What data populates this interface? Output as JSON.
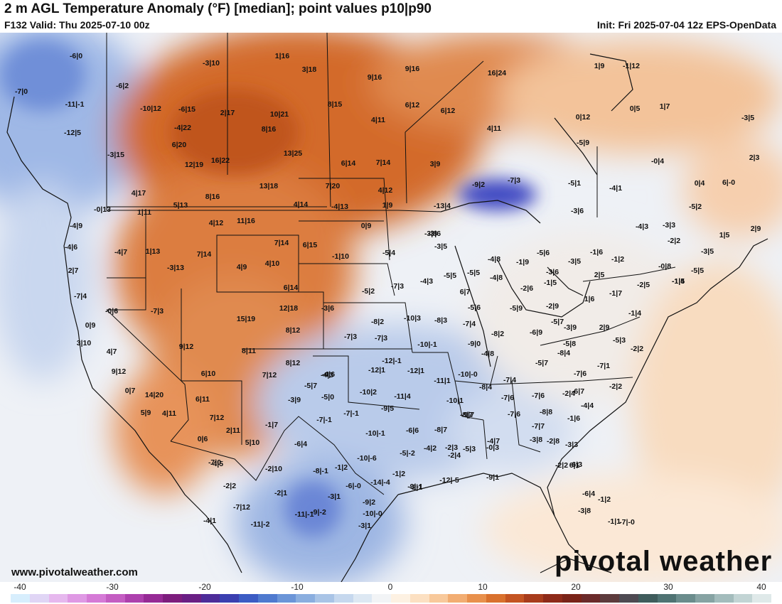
{
  "header": {
    "title": "2 m AGL Temperature Anomaly (°F) [median]; point values p10|p90",
    "valid": "F132 Valid: Thu 2025-07-10 00z",
    "init": "Init: Fri 2025-07-04 12z EPS-OpenData"
  },
  "footer": {
    "website": "www.pivotalweather.com",
    "logo_text": "pivotal weather"
  },
  "colorbar": {
    "ticks": [
      "-40",
      "-30",
      "-20",
      "-10",
      "0",
      "10",
      "20",
      "30",
      "40"
    ],
    "colors": [
      "#d7eefd",
      "#e0d5f5",
      "#e6b8ee",
      "#df99e4",
      "#d57ad6",
      "#c45dc2",
      "#ad40ad",
      "#962a95",
      "#7d1d7d",
      "#6a1f84",
      "#4d2c99",
      "#3b3fb0",
      "#3c5cc4",
      "#4f7acf",
      "#6b95d8",
      "#8aaedf",
      "#a9c4e6",
      "#c6d8ee",
      "#dde8f3",
      "#f2f4f6",
      "#fdf1e2",
      "#fce0c2",
      "#f8c99b",
      "#f2ad72",
      "#e8904c",
      "#d9712d",
      "#c45422",
      "#a83c1c",
      "#8e2a19",
      "#7a2318",
      "#6b2a2a",
      "#5d3b3d",
      "#4e4a52",
      "#3f5c5c",
      "#4f7373",
      "#6a8c8c",
      "#86a3a3",
      "#a3bcbc",
      "#c2d4d4",
      "#dfe9e9"
    ]
  },
  "point_values": [
    {
      "t": "-6|0"
    },
    {
      "t": "-7|0"
    },
    {
      "t": "-11|-1"
    },
    {
      "t": "-6|2"
    },
    {
      "t": "-3|10"
    },
    {
      "t": "1|16"
    },
    {
      "t": "3|18"
    },
    {
      "t": "9|16"
    },
    {
      "t": "9|16"
    },
    {
      "t": "16|24"
    },
    {
      "t": "1|9"
    },
    {
      "t": "-1|12"
    },
    {
      "t": "-12|5"
    },
    {
      "t": "-10|12"
    },
    {
      "t": "-6|15"
    },
    {
      "t": "2|17"
    },
    {
      "t": "10|21"
    },
    {
      "t": "8|15"
    },
    {
      "t": "6|12"
    },
    {
      "t": "6|12"
    },
    {
      "t": "0|12"
    },
    {
      "t": "0|5"
    },
    {
      "t": "1|7"
    },
    {
      "t": "-3|5"
    },
    {
      "t": "-4|22"
    },
    {
      "t": "8|16"
    },
    {
      "t": "4|11"
    },
    {
      "t": "4|11"
    },
    {
      "t": "6|20"
    },
    {
      "t": "-5|9"
    },
    {
      "t": "-3|15"
    },
    {
      "t": "13|25"
    },
    {
      "t": "16|22"
    },
    {
      "t": "12|19"
    },
    {
      "t": "6|14"
    },
    {
      "t": "7|14"
    },
    {
      "t": "3|9"
    },
    {
      "t": "-9|2"
    },
    {
      "t": "-7|3"
    },
    {
      "t": "-0|4"
    },
    {
      "t": "2|3"
    },
    {
      "t": "-5|1"
    },
    {
      "t": "-4|1"
    },
    {
      "t": "0|4"
    },
    {
      "t": "6|-0"
    },
    {
      "t": "4|17"
    },
    {
      "t": "13|18"
    },
    {
      "t": "7|20"
    },
    {
      "t": "4|12"
    },
    {
      "t": "8|16"
    },
    {
      "t": "5|13"
    },
    {
      "t": "4|14"
    },
    {
      "t": "-4|13"
    },
    {
      "t": "1|9"
    },
    {
      "t": "-13|4"
    },
    {
      "t": "-0|13"
    },
    {
      "t": "1|11"
    },
    {
      "t": "4|12"
    },
    {
      "t": "11|16"
    },
    {
      "t": "0|9"
    },
    {
      "t": "-4|9"
    },
    {
      "t": "-4|6"
    },
    {
      "t": "-4|7"
    },
    {
      "t": "1|13"
    },
    {
      "t": "7|14"
    },
    {
      "t": "7|14"
    },
    {
      "t": "6|15"
    },
    {
      "t": "-3|6"
    },
    {
      "t": "-4|3"
    },
    {
      "t": "-3|3"
    },
    {
      "t": "-5|2"
    },
    {
      "t": "2|9"
    },
    {
      "t": "1|5"
    },
    {
      "t": "-3|5"
    },
    {
      "t": "-3|8"
    },
    {
      "t": "-2|2"
    },
    {
      "t": "-3|6"
    },
    {
      "t": "-3|5"
    },
    {
      "t": "-5|4"
    },
    {
      "t": "-1|10"
    },
    {
      "t": "4|9"
    },
    {
      "t": "4|10"
    },
    {
      "t": "-3|13"
    },
    {
      "t": "2|7"
    },
    {
      "t": "-7|4"
    },
    {
      "t": "-4|8"
    },
    {
      "t": "-1|9"
    },
    {
      "t": "-5|6"
    },
    {
      "t": "-3|6"
    },
    {
      "t": "-3|5"
    },
    {
      "t": "-1|6"
    },
    {
      "t": "-1|2"
    },
    {
      "t": "-0|8"
    },
    {
      "t": "-5|5"
    },
    {
      "t": "-1|4"
    },
    {
      "t": "6|14"
    },
    {
      "t": "-5|2"
    },
    {
      "t": "-7|3"
    },
    {
      "t": "-4|3"
    },
    {
      "t": "-5|5"
    },
    {
      "t": "-5|5"
    },
    {
      "t": "6|7"
    },
    {
      "t": "-4|8"
    },
    {
      "t": "-2|6"
    },
    {
      "t": "-1|5"
    },
    {
      "t": "2|5"
    },
    {
      "t": "-1|7"
    },
    {
      "t": "-2|5"
    },
    {
      "t": "-1|5"
    },
    {
      "t": "-0|6"
    },
    {
      "t": "-7|3"
    },
    {
      "t": "12|18"
    },
    {
      "t": "-3|6"
    },
    {
      "t": "15|19"
    },
    {
      "t": "-8|2"
    },
    {
      "t": "-10|3"
    },
    {
      "t": "-8|3"
    },
    {
      "t": "-5|6"
    },
    {
      "t": "-5|9"
    },
    {
      "t": "-2|9"
    },
    {
      "t": "1|6"
    },
    {
      "t": "-1|4"
    },
    {
      "t": "0|9"
    },
    {
      "t": "8|12"
    },
    {
      "t": "-7|4"
    },
    {
      "t": "-8|2"
    },
    {
      "t": "-6|9"
    },
    {
      "t": "-5|7"
    },
    {
      "t": "-3|9"
    },
    {
      "t": "2|9"
    },
    {
      "t": "-7|3"
    },
    {
      "t": "-7|3"
    },
    {
      "t": "-10|-1"
    },
    {
      "t": "-9|0"
    },
    {
      "t": "-5|8"
    },
    {
      "t": "-5|3"
    },
    {
      "t": "-2|2"
    },
    {
      "t": "3|10"
    },
    {
      "t": "4|7"
    },
    {
      "t": "9|12"
    },
    {
      "t": "8|11"
    },
    {
      "t": "-12|-1"
    },
    {
      "t": "-4|6"
    },
    {
      "t": "-8|4"
    },
    {
      "t": "-5|7"
    },
    {
      "t": "-7|1"
    },
    {
      "t": "9|12"
    },
    {
      "t": "6|10"
    },
    {
      "t": "-4|3"
    },
    {
      "t": "-12|1"
    },
    {
      "t": "-12|1"
    },
    {
      "t": "-10|-0"
    },
    {
      "t": "-7|6"
    },
    {
      "t": "-2|2"
    },
    {
      "t": "8|12"
    },
    {
      "t": "-4|8"
    },
    {
      "t": "7|12"
    },
    {
      "t": "-5|7"
    },
    {
      "t": "-11|1"
    },
    {
      "t": "-7|4"
    },
    {
      "t": "-2|4"
    },
    {
      "t": "-10|2"
    },
    {
      "t": "-11|4"
    },
    {
      "t": "-8|4"
    },
    {
      "t": "-7|6"
    },
    {
      "t": "0|7"
    },
    {
      "t": "14|20"
    },
    {
      "t": "6|11"
    },
    {
      "t": "-5|0"
    },
    {
      "t": "-3|9"
    },
    {
      "t": "-10|1"
    },
    {
      "t": "-7|6"
    },
    {
      "t": "-6|7"
    },
    {
      "t": "-4|4"
    },
    {
      "t": "5|9"
    },
    {
      "t": "4|11"
    },
    {
      "t": "7|12"
    },
    {
      "t": "-9|5"
    },
    {
      "t": "-7|-1"
    },
    {
      "t": "-9|7"
    },
    {
      "t": "-8|7"
    },
    {
      "t": "-7|6"
    },
    {
      "t": "-8|8"
    },
    {
      "t": "-1|6"
    },
    {
      "t": "2|11"
    },
    {
      "t": "-1|7"
    },
    {
      "t": "-7|-1"
    },
    {
      "t": "-6|6"
    },
    {
      "t": "-8|7"
    },
    {
      "t": "-7|7"
    },
    {
      "t": "0|6"
    },
    {
      "t": "5|10"
    },
    {
      "t": "-10|-1"
    },
    {
      "t": "-6|4"
    },
    {
      "t": "-4|2"
    },
    {
      "t": "-5|3"
    },
    {
      "t": "-2|4"
    },
    {
      "t": "-4|7"
    },
    {
      "t": "-3|8"
    },
    {
      "t": "-2|8"
    },
    {
      "t": "-4|5"
    },
    {
      "t": "-8|-1"
    },
    {
      "t": "-10|-6"
    },
    {
      "t": "-5|-2"
    },
    {
      "t": "-2|3"
    },
    {
      "t": "-0|3"
    },
    {
      "t": "-3|3"
    },
    {
      "t": "6|1"
    },
    {
      "t": "-7|0"
    },
    {
      "t": "-2|10"
    },
    {
      "t": "-1|2"
    },
    {
      "t": "-1|2"
    },
    {
      "t": "-2|1"
    },
    {
      "t": "-12|-5"
    },
    {
      "t": "-9|1"
    },
    {
      "t": "-6|3"
    },
    {
      "t": "-2|2"
    },
    {
      "t": "-2|2"
    },
    {
      "t": "-6|-0"
    },
    {
      "t": "-14|-4"
    },
    {
      "t": "-9|-1"
    },
    {
      "t": "-2|1"
    },
    {
      "t": "-3|1"
    },
    {
      "t": "-9|2"
    },
    {
      "t": "-6|4"
    },
    {
      "t": "-1|2"
    },
    {
      "t": "-7|12"
    },
    {
      "t": "-11|-1"
    },
    {
      "t": "-10|-0"
    },
    {
      "t": "-1|1"
    },
    {
      "t": "-3|8"
    },
    {
      "t": "-4|1"
    },
    {
      "t": "-11|-2"
    },
    {
      "t": "-9|-2"
    },
    {
      "t": "-3|1"
    },
    {
      "t": "-7|-0"
    }
  ]
}
